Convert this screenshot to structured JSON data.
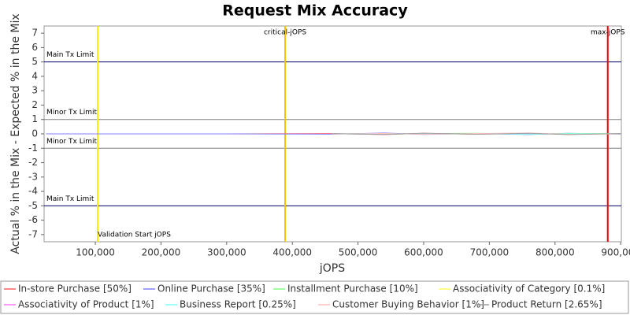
{
  "chart_data": {
    "type": "line",
    "title": "Request Mix Accuracy",
    "x_label": "jOPS",
    "y_label": "Actual % in the Mix - Expected % in the Mix",
    "xlim": [
      22000,
      901000
    ],
    "ylim": [
      -7.5,
      7.5
    ],
    "xticks": [
      {
        "value": 100000,
        "label": "100,000"
      },
      {
        "value": 200000,
        "label": "200,000"
      },
      {
        "value": 300000,
        "label": "300,000"
      },
      {
        "value": 400000,
        "label": "400,000"
      },
      {
        "value": 500000,
        "label": "500,000"
      },
      {
        "value": 600000,
        "label": "600,000"
      },
      {
        "value": 700000,
        "label": "700,000"
      },
      {
        "value": 800000,
        "label": "800,000"
      },
      {
        "value": 900000,
        "label": "900,000"
      }
    ],
    "yticks": [
      -7,
      -6,
      -5,
      -4,
      -3,
      -2,
      -1,
      0,
      1,
      2,
      3,
      4,
      5,
      6,
      7
    ],
    "x": [
      25000,
      150000,
      300000,
      460000,
      540000,
      600000,
      680000,
      760000,
      820000,
      900000
    ],
    "series": [
      {
        "name": "In-store Purchase [50%]",
        "color": "#ff6060",
        "values": [
          0,
          0,
          0,
          0.02,
          -0.05,
          0.04,
          -0.03,
          0.05,
          -0.04,
          0.02
        ]
      },
      {
        "name": "Online Purchase [35%]",
        "color": "#8080ff",
        "values": [
          0,
          0,
          0,
          -0.02,
          0.06,
          -0.04,
          0.03,
          -0.05,
          0.04,
          -0.02
        ]
      },
      {
        "name": "Installment Purchase [10%]",
        "color": "#80ff80",
        "values": [
          null,
          null,
          null,
          0.01,
          -0.03,
          0.02,
          0.04,
          -0.02,
          0.03,
          0.01
        ]
      },
      {
        "name": "Associativity of Category [0.1%]",
        "color": "#ffff60",
        "values": [
          null,
          null,
          null,
          0,
          0.01,
          -0.01,
          0,
          0.01,
          -0.01,
          0
        ]
      },
      {
        "name": "Associativity of Product [1%]",
        "color": "#ff80ff",
        "values": [
          null,
          null,
          null,
          0.01,
          -0.02,
          0.03,
          -0.01,
          0.02,
          -0.02,
          0.01
        ]
      },
      {
        "name": "Business Report [0.25%]",
        "color": "#80ffff",
        "values": [
          null,
          null,
          null,
          0,
          0.02,
          -0.01,
          0.01,
          -0.02,
          0.01,
          0
        ]
      },
      {
        "name": "Customer Buying Behavior [1%]",
        "color": "#ffc0c0",
        "values": [
          null,
          null,
          null,
          -0.01,
          0.03,
          -0.02,
          0.02,
          0.06,
          -0.03,
          0.01
        ]
      },
      {
        "name": "Product Return [2.65%]",
        "color": "#a0a0a0",
        "values": [
          null,
          null,
          null,
          0.02,
          -0.04,
          0.05,
          -0.03,
          0.04,
          -0.05,
          0.02
        ]
      }
    ],
    "reference_lines": [
      {
        "axis": "y",
        "value": 5,
        "label": "Main Tx Limit",
        "color": "#000066"
      },
      {
        "axis": "y",
        "value": 1,
        "label": "Minor Tx Limit",
        "color": "#808080"
      },
      {
        "axis": "y",
        "value": -1,
        "label": "Minor Tx Limit",
        "color": "#808080"
      },
      {
        "axis": "y",
        "value": -5,
        "label": "Main Tx Limit",
        "color": "#000066"
      },
      {
        "axis": "x",
        "value": 103600,
        "label": "Validation Start jOPS",
        "color": "#ffee00"
      },
      {
        "axis": "x",
        "value": 389000,
        "label": "critical-jOPS",
        "color": "#ffc000"
      },
      {
        "axis": "x",
        "value": 880300,
        "label": "max-jOPS",
        "color": "#ee0000"
      }
    ]
  }
}
